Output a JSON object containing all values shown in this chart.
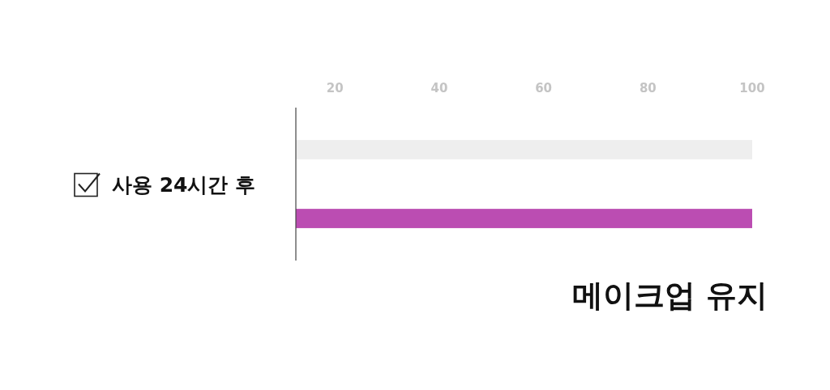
{
  "chart_data": {
    "type": "bar",
    "orientation": "horizontal",
    "categories": [
      "사용 24시간 후"
    ],
    "series": [
      {
        "color": "#eeeeee",
        "values": [
          100
        ]
      },
      {
        "name": "메이크업 유지",
        "color": "#bb4db2",
        "values": [
          100
        ]
      }
    ],
    "xlim": [
      12.5,
      100
    ],
    "xticks": [
      20,
      40,
      60,
      80,
      100
    ],
    "grid": false,
    "legend": "bottom"
  }
}
